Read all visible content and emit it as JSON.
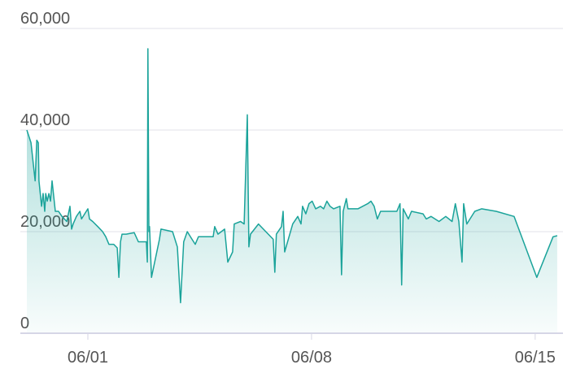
{
  "chart_data": {
    "type": "area",
    "x": [
      -0.91,
      -0.78,
      -0.65,
      -0.6,
      -0.55,
      -0.53,
      -0.45,
      -0.4,
      -0.35,
      -0.32,
      -0.27,
      -0.22,
      -0.17,
      -0.12,
      -0.07,
      -0.02,
      0.08,
      0.19,
      0.34,
      0.44,
      0.49,
      0.54,
      0.64,
      0.75,
      0.8,
      0.9,
      1.0,
      1.05,
      1.15,
      1.31,
      1.46,
      1.56,
      1.66,
      1.81,
      1.92,
      1.97,
      2.02,
      2.07,
      2.2,
      2.45,
      2.58,
      2.73,
      2.83,
      2.86,
      2.88,
      2.91,
      2.93,
      2.99,
      3.24,
      3.29,
      3.65,
      3.8,
      3.9,
      4.0,
      4.11,
      4.26,
      4.36,
      4.46,
      4.61,
      4.92,
      4.97,
      5.07,
      5.28,
      5.38,
      5.53,
      5.58,
      5.78,
      5.89,
      5.99,
      6.04,
      6.09,
      6.34,
      6.8,
      6.85,
      6.9,
      7.06,
      7.11,
      7.16,
      7.41,
      7.57,
      7.67,
      7.72,
      7.82,
      7.92,
      8.02,
      8.13,
      8.28,
      8.38,
      8.48,
      8.58,
      8.69,
      8.89,
      8.94,
      8.99,
      9.09,
      9.14,
      9.45,
      9.76,
      9.86,
      9.96,
      10.06,
      10.16,
      10.67,
      10.77,
      10.82,
      10.87,
      11.03,
      11.13,
      11.49,
      11.59,
      11.74,
      11.99,
      12.2,
      12.4,
      12.5,
      12.61,
      12.71,
      12.76,
      12.86,
      12.96,
      13.11,
      13.32,
      13.78,
      14.34,
      15.05,
      15.56,
      15.69
    ],
    "values": [
      40000,
      37500,
      30000,
      38000,
      37500,
      30000,
      25000,
      27500,
      24000,
      27500,
      26000,
      27500,
      26000,
      30000,
      27000,
      24000,
      24000,
      23000,
      22000,
      25000,
      20500,
      21500,
      23000,
      24000,
      22500,
      23500,
      24500,
      22500,
      22000,
      21000,
      20000,
      19000,
      17500,
      17500,
      16800,
      11000,
      18000,
      19500,
      19500,
      19800,
      18000,
      18000,
      18000,
      14000,
      56000,
      20000,
      21000,
      11000,
      18500,
      20500,
      20000,
      17000,
      6000,
      18000,
      20000,
      18500,
      17500,
      19000,
      19000,
      19000,
      21000,
      19500,
      20500,
      14000,
      16000,
      21500,
      22000,
      21500,
      43000,
      17000,
      19500,
      21500,
      18500,
      12000,
      19500,
      21000,
      24000,
      16000,
      21500,
      23000,
      21500,
      25000,
      23500,
      25500,
      26000,
      24500,
      25000,
      24500,
      26000,
      25000,
      24500,
      25000,
      11500,
      24000,
      26500,
      24500,
      24500,
      25500,
      26000,
      25000,
      22500,
      24000,
      24000,
      25500,
      9500,
      24500,
      22500,
      24000,
      23500,
      22500,
      23000,
      22000,
      23000,
      22000,
      25500,
      22000,
      14000,
      25500,
      21500,
      22500,
      24000,
      24500,
      24000,
      23000,
      11000,
      19000,
      19200
    ],
    "color": "#1aa39a",
    "xlim": [
      -0.91,
      15.87
    ],
    "xticks": [
      {
        "value": 1,
        "label": "06/01"
      },
      {
        "value": 8,
        "label": "06/08"
      },
      {
        "value": 15,
        "label": "06/15"
      }
    ],
    "ylim": [
      0,
      60000
    ],
    "yticks": [
      0,
      {
        "value": 20000,
        "label": "20,000"
      },
      {
        "value": 40000,
        "label": "40,000"
      },
      {
        "value": 60000,
        "label": "60,000"
      }
    ],
    "grid": true
  }
}
